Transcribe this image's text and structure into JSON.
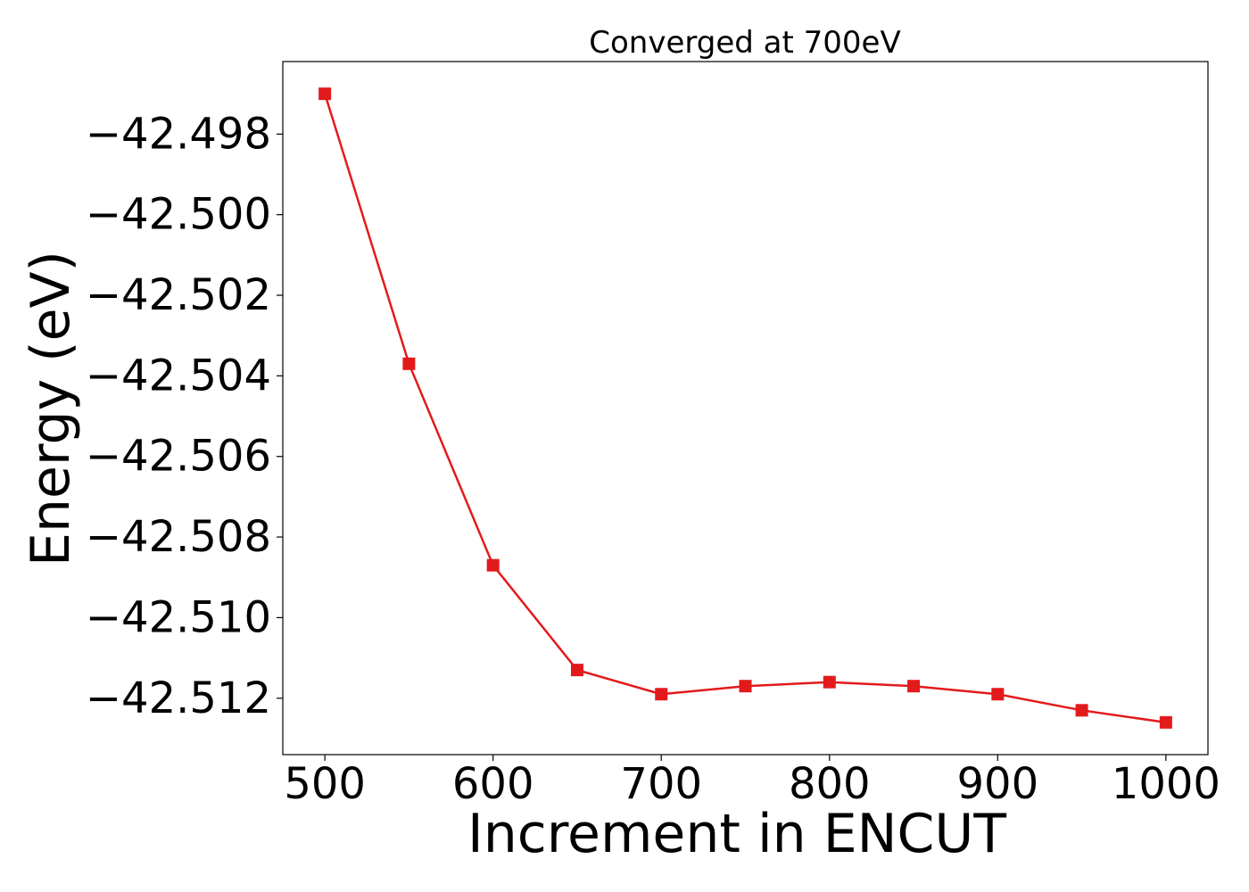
{
  "chart_data": {
    "type": "line",
    "title": "Converged at 700eV",
    "xlabel": "Increment in ENCUT",
    "ylabel": "Energy (eV)",
    "x": [
      500,
      550,
      600,
      650,
      700,
      750,
      800,
      850,
      900,
      950,
      1000
    ],
    "series": [
      {
        "values": [
          -42.497,
          -42.5037,
          -42.5087,
          -42.5113,
          -42.5119,
          -42.5117,
          -42.5116,
          -42.5117,
          -42.5119,
          -42.5123,
          -42.5126
        ],
        "color": "#e31a1c",
        "marker": "square"
      }
    ],
    "xlim": [
      475,
      1025
    ],
    "ylim": [
      -42.5134,
      -42.4962
    ],
    "xticks": [
      500,
      600,
      700,
      800,
      900,
      1000
    ],
    "xtick_labels": [
      "500",
      "600",
      "700",
      "800",
      "900",
      "1000"
    ],
    "yticks": [
      -42.498,
      -42.5,
      -42.502,
      -42.504,
      -42.506,
      -42.508,
      -42.51,
      -42.512
    ],
    "ytick_labels": [
      "−42.498",
      "−42.500",
      "−42.502",
      "−42.504",
      "−42.506",
      "−42.508",
      "−42.510",
      "−42.512"
    ],
    "grid": false,
    "legend": false
  }
}
